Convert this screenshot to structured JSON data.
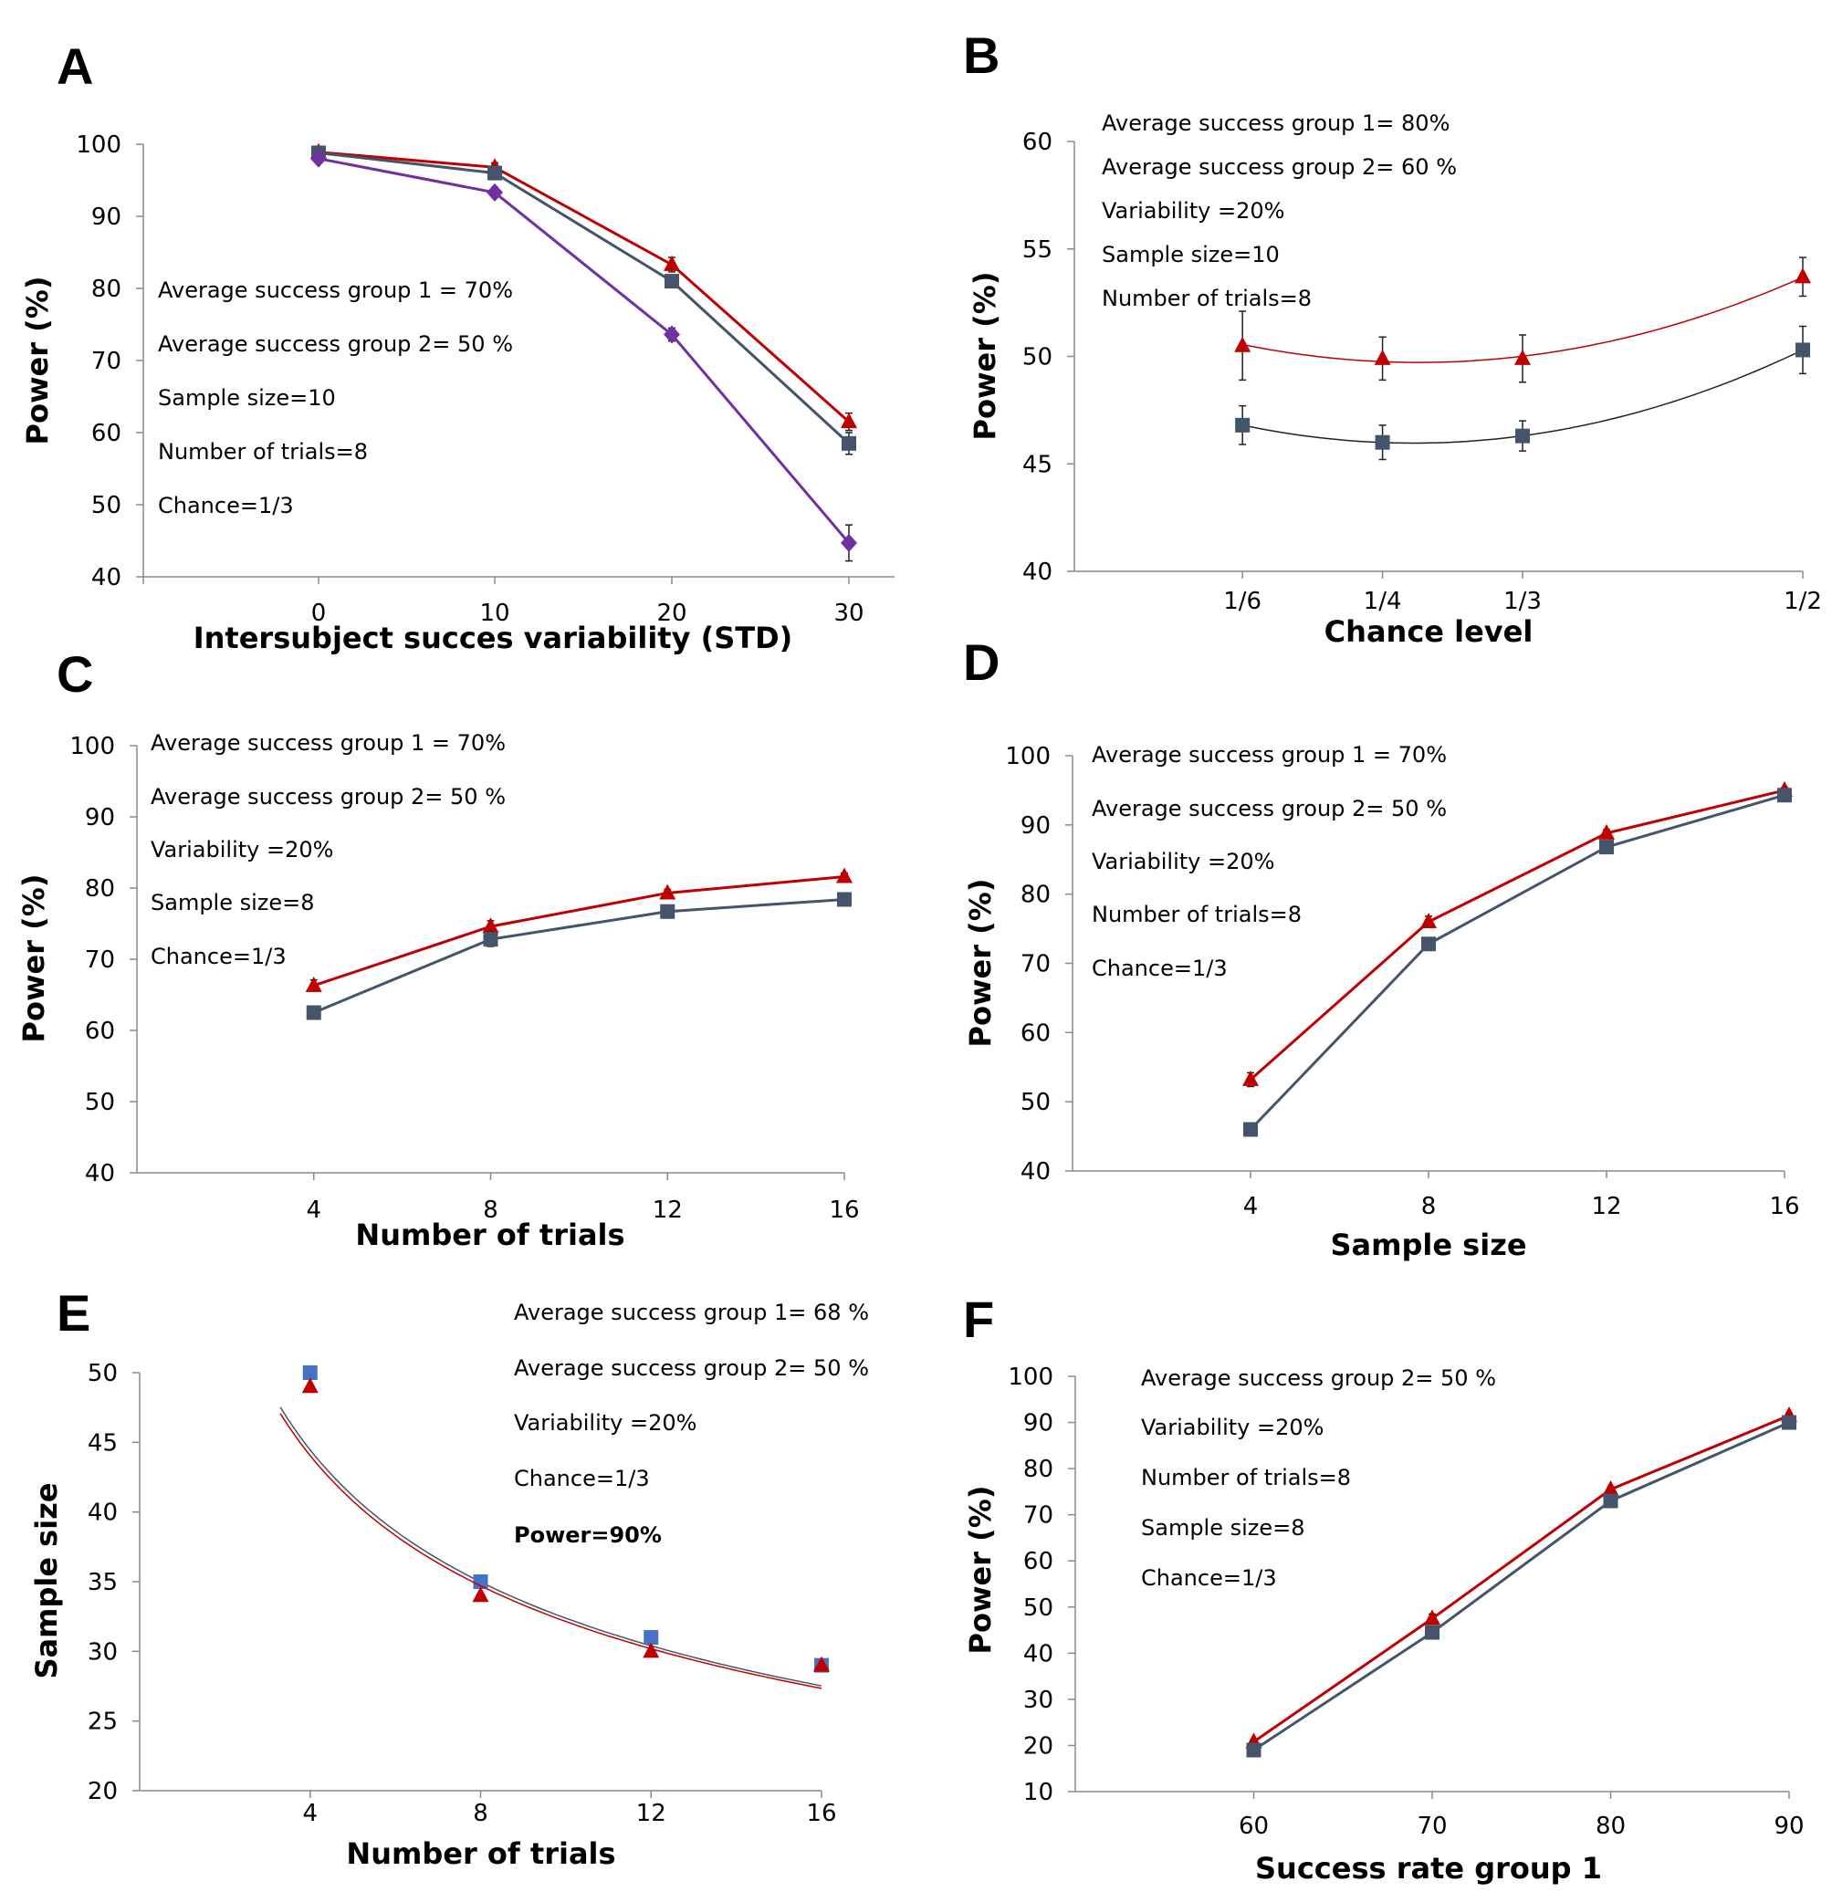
{
  "chart_data": [
    {
      "panel": "A",
      "type": "line",
      "xlabel": "Intersubject succes variability (STD)",
      "ylabel": "Power (%)",
      "x": [
        0,
        10,
        20,
        30
      ],
      "xticks": [
        "0",
        "10",
        "20",
        "30"
      ],
      "ylim": [
        40,
        100
      ],
      "yticks": [
        40,
        50,
        60,
        70,
        80,
        90,
        100
      ],
      "annotations": [
        "Average success group 1 = 70%",
        "Average success group 2= 50 %",
        "Sample size=10",
        "Number of trials=8",
        "Chance=1/3"
      ],
      "series": [
        {
          "name": "red",
          "color": "#c00000",
          "marker": "triangle",
          "values": [
            98.9,
            96.8,
            83.3,
            61.5
          ],
          "errors": [
            0.3,
            0.6,
            1.0,
            1.2
          ]
        },
        {
          "name": "dark",
          "color": "#44546a",
          "marker": "square",
          "values": [
            98.8,
            96.0,
            81.0,
            58.5
          ],
          "errors": [
            0.5,
            0.8,
            0.8,
            1.5
          ]
        },
        {
          "name": "purple",
          "color": "#7030a0",
          "marker": "diamond",
          "values": [
            98.0,
            93.3,
            73.6,
            44.7
          ],
          "errors": [
            0.5,
            0.7,
            0.9,
            2.5
          ]
        }
      ]
    },
    {
      "panel": "B",
      "type": "scatter",
      "xlabel": "Chance level",
      "ylabel": "Power (%)",
      "x": [
        0.1667,
        0.25,
        0.3333,
        0.5
      ],
      "xlim": [
        0.0667,
        0.5
      ],
      "xticks": [
        "1/6",
        "1/4",
        "1/3",
        "1/2"
      ],
      "ylim": [
        40,
        60
      ],
      "yticks": [
        40,
        45,
        50,
        55,
        60
      ],
      "trendline": "polynomial",
      "annotations": [
        "Average success group 1= 80%",
        "Average success group 2= 60 %",
        "Variability =20%",
        "Sample size=10",
        "Number of trials=8"
      ],
      "series": [
        {
          "name": "red",
          "color": "#c00000",
          "marker": "triangle",
          "values": [
            50.5,
            49.9,
            49.9,
            53.7
          ],
          "errors": [
            1.6,
            1.0,
            1.1,
            0.9
          ]
        },
        {
          "name": "dark",
          "color": "#44546a",
          "marker": "square",
          "values": [
            46.8,
            46.0,
            46.3,
            50.3
          ],
          "errors": [
            0.9,
            0.8,
            0.7,
            1.1
          ]
        }
      ]
    },
    {
      "panel": "C",
      "type": "line",
      "xlabel": "Number of trials",
      "ylabel": "Power (%)",
      "x": [
        4,
        8,
        12,
        16
      ],
      "xlim": [
        0,
        16
      ],
      "xticks": [
        "4",
        "8",
        "12",
        "16"
      ],
      "ylim": [
        40,
        100
      ],
      "yticks": [
        40,
        50,
        60,
        70,
        80,
        90,
        100
      ],
      "annotations": [
        "Average success group 1 = 70%",
        "Average success group 2= 50 %",
        "Variability =20%",
        "Sample size=8",
        "Chance=1/3"
      ],
      "series": [
        {
          "name": "red",
          "color": "#c00000",
          "marker": "triangle",
          "values": [
            66.3,
            74.6,
            79.3,
            81.6
          ],
          "errors": [
            0.8,
            0.8,
            0.5,
            0.5
          ]
        },
        {
          "name": "dark",
          "color": "#44546a",
          "marker": "square",
          "values": [
            62.5,
            72.8,
            76.7,
            78.4
          ],
          "errors": [
            0.5,
            1.0,
            0.5,
            0.5
          ]
        }
      ]
    },
    {
      "panel": "D",
      "type": "line",
      "xlabel": "Sample size",
      "ylabel": "Power (%)",
      "x": [
        4,
        8,
        12,
        16
      ],
      "xlim": [
        0,
        16
      ],
      "xticks": [
        "4",
        "8",
        "12",
        "16"
      ],
      "ylim": [
        40,
        100
      ],
      "yticks": [
        40,
        50,
        60,
        70,
        80,
        90,
        100
      ],
      "annotations": [
        "Average success group 1 = 70%",
        "Average success group 2= 50 %",
        "Variability =20%",
        "Number of trials=8",
        "Chance=1/3"
      ],
      "series": [
        {
          "name": "red",
          "color": "#c00000",
          "marker": "triangle",
          "values": [
            53.2,
            76.0,
            88.8,
            95.0
          ],
          "errors": [
            1.0,
            0.8,
            0.5,
            0.4
          ]
        },
        {
          "name": "dark",
          "color": "#44546a",
          "marker": "square",
          "values": [
            46.0,
            72.8,
            86.8,
            94.3
          ],
          "errors": [
            0.5,
            0.5,
            0.5,
            0.4
          ]
        }
      ]
    },
    {
      "panel": "E",
      "type": "scatter",
      "xlabel": "Number of trials",
      "ylabel": "Sample size",
      "x": [
        4,
        8,
        12,
        16
      ],
      "xlim": [
        0,
        16
      ],
      "xticks": [
        "4",
        "8",
        "12",
        "16"
      ],
      "ylim": [
        20,
        50
      ],
      "yticks": [
        20,
        25,
        30,
        35,
        40,
        45,
        50
      ],
      "trendline": "power",
      "annotations": [
        "Average success group 1= 68 %",
        "Average success group 2= 50 %",
        "Variability =20%",
        "Chance=1/3"
      ],
      "annotation_bold": "Power=90%",
      "series": [
        {
          "name": "blue",
          "color": "#4472c4",
          "marker": "square",
          "values": [
            50,
            35,
            31,
            29
          ],
          "trend": {
            "a": 71.83,
            "b": -0.346
          },
          "trend_color": "#44546a"
        },
        {
          "name": "red",
          "color": "#c00000",
          "marker": "triangle",
          "values": [
            49,
            34,
            30,
            29
          ],
          "trend": {
            "a": 70.97,
            "b": -0.344
          },
          "trend_color": "#c00000"
        }
      ]
    },
    {
      "panel": "F",
      "type": "line",
      "xlabel": "Success rate  group 1",
      "ylabel": "Power (%)",
      "x": [
        60,
        70,
        80,
        90
      ],
      "xlim": [
        50,
        90
      ],
      "xticks": [
        "60",
        "70",
        "80",
        "90"
      ],
      "ylim": [
        10,
        100
      ],
      "yticks": [
        10,
        20,
        30,
        40,
        50,
        60,
        70,
        80,
        90,
        100
      ],
      "annotations": [
        "Average success group 2= 50 %",
        "Variability =20%",
        "Number of trials=8",
        "Sample size=8",
        "Chance=1/3"
      ],
      "series": [
        {
          "name": "red",
          "color": "#c00000",
          "marker": "triangle",
          "values": [
            20.8,
            47.5,
            75.5,
            91.5
          ],
          "errors": [
            0.5,
            1.0,
            0.5,
            0.4
          ]
        },
        {
          "name": "dark",
          "color": "#44546a",
          "marker": "square",
          "values": [
            19.0,
            44.5,
            73.0,
            90.0
          ],
          "errors": [
            0.5,
            0.5,
            0.5,
            0.4
          ]
        }
      ]
    }
  ]
}
